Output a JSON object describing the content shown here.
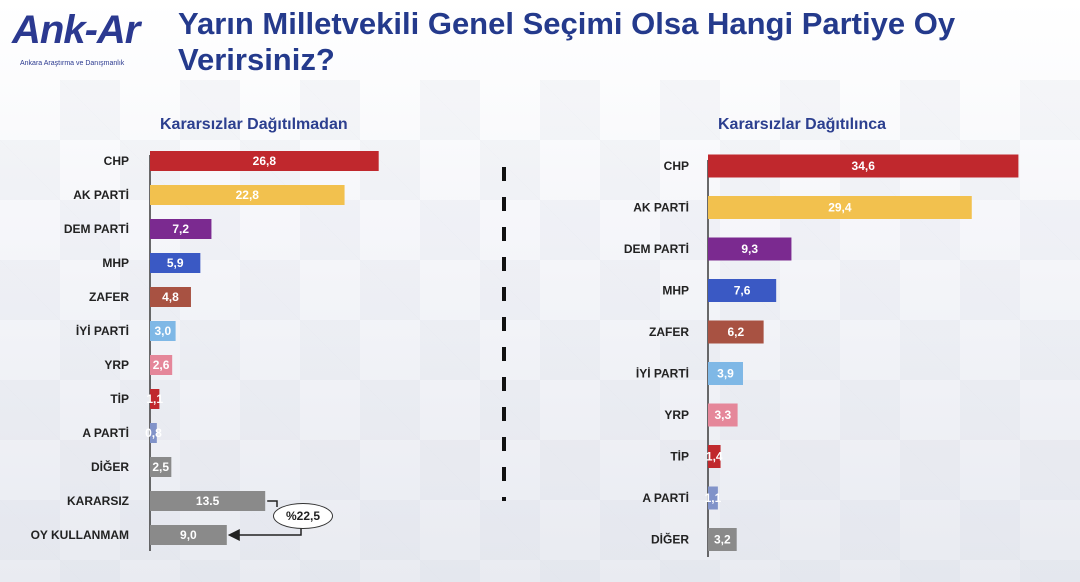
{
  "logo": {
    "name": "Ank-Ar",
    "tagline": "Ankara Araştırma ve Danışmanlık"
  },
  "title": "Yarın Milletvekili Genel Seçimi Olsa Hangi Partiye Oy Verirsiniz?",
  "chart_data": [
    {
      "type": "bar",
      "orientation": "horizontal",
      "title": "Kararsızlar Dağıtılmadan",
      "categories": [
        "CHP",
        "AK PARTİ",
        "DEM PARTİ",
        "MHP",
        "ZAFER",
        "İYİ PARTİ",
        "YRP",
        "TİP",
        "A PARTİ",
        "DİĞER",
        "KARARSIZ",
        "OY KULLANMAM"
      ],
      "values": [
        26.8,
        22.8,
        7.2,
        5.9,
        4.8,
        3.0,
        2.6,
        1.1,
        0.8,
        2.5,
        13.5,
        9.0
      ],
      "value_labels": [
        "26,8",
        "22,8",
        "7,2",
        "5,9",
        "4,8",
        "3,0",
        "2,6",
        "1,1",
        "0,8",
        "2,5",
        "13.5",
        "9,0"
      ],
      "colors": [
        "#c0282d",
        "#f2c14e",
        "#7b2a90",
        "#3a59c4",
        "#a85242",
        "#7fb8e6",
        "#e5879a",
        "#c0282d",
        "#8193c9",
        "#8a8a8a",
        "#8a8a8a",
        "#8a8a8a"
      ],
      "xlim": [
        0,
        30
      ],
      "annotation": {
        "text": "%22,5",
        "applies_to": [
          "KARARSIZ",
          "OY KULLANMAM"
        ]
      }
    },
    {
      "type": "bar",
      "orientation": "horizontal",
      "title": "Kararsızlar Dağıtılınca",
      "categories": [
        "CHP",
        "AK PARTİ",
        "DEM PARTİ",
        "MHP",
        "ZAFER",
        "İYİ PARTİ",
        "YRP",
        "TİP",
        "A PARTİ",
        "DİĞER"
      ],
      "values": [
        34.6,
        29.4,
        9.3,
        7.6,
        6.2,
        3.9,
        3.3,
        1.4,
        1.1,
        3.2
      ],
      "value_labels": [
        "34,6",
        "29,4",
        "9,3",
        "7,6",
        "6,2",
        "3,9",
        "3,3",
        "1,4",
        "1,1",
        "3,2"
      ],
      "colors": [
        "#c0282d",
        "#f2c14e",
        "#7b2a90",
        "#3a59c4",
        "#a85242",
        "#7fb8e6",
        "#e5879a",
        "#c0282d",
        "#8193c9",
        "#8a8a8a"
      ],
      "xlim": [
        0,
        35
      ]
    }
  ]
}
